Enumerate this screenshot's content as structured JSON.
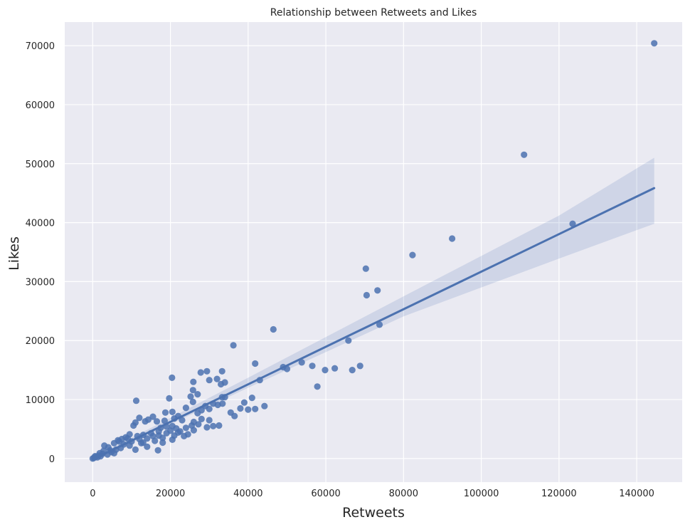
{
  "chart_data": {
    "type": "scatter",
    "title": "Relationship between Retweets and Likes",
    "xlabel": "Retweets",
    "ylabel": "Likes",
    "xlim": [
      -7200,
      151700
    ],
    "ylim": [
      -4000,
      74000
    ],
    "xticks": [
      0,
      20000,
      40000,
      60000,
      80000,
      100000,
      120000,
      140000
    ],
    "yticks": [
      0,
      10000,
      20000,
      30000,
      40000,
      50000,
      60000,
      70000
    ],
    "grid": true,
    "points": [
      [
        144500,
        70400
      ],
      [
        111000,
        51500
      ],
      [
        123500,
        39800
      ],
      [
        92500,
        37300
      ],
      [
        82300,
        34500
      ],
      [
        70300,
        32200
      ],
      [
        73300,
        28500
      ],
      [
        70500,
        27700
      ],
      [
        73800,
        22700
      ],
      [
        46500,
        21900
      ],
      [
        65800,
        20000
      ],
      [
        36200,
        19200
      ],
      [
        41800,
        16100
      ],
      [
        53800,
        16300
      ],
      [
        49000,
        15500
      ],
      [
        50000,
        15200
      ],
      [
        56500,
        15700
      ],
      [
        59800,
        15000
      ],
      [
        62300,
        15300
      ],
      [
        66800,
        15000
      ],
      [
        68800,
        15700
      ],
      [
        57800,
        12200
      ],
      [
        43000,
        13300
      ],
      [
        44200,
        8900
      ],
      [
        39000,
        9500
      ],
      [
        40000,
        8300
      ],
      [
        41000,
        10300
      ],
      [
        41800,
        8400
      ],
      [
        38000,
        8500
      ],
      [
        35500,
        7800
      ],
      [
        36500,
        7200
      ],
      [
        27800,
        14600
      ],
      [
        29400,
        14800
      ],
      [
        32000,
        13500
      ],
      [
        33300,
        14800
      ],
      [
        30000,
        13300
      ],
      [
        33000,
        12600
      ],
      [
        34000,
        12900
      ],
      [
        20400,
        13700
      ],
      [
        25900,
        13000
      ],
      [
        25800,
        11600
      ],
      [
        27000,
        10900
      ],
      [
        25200,
        10500
      ],
      [
        25800,
        9600
      ],
      [
        19700,
        10200
      ],
      [
        11200,
        9800
      ],
      [
        33300,
        10400
      ],
      [
        34000,
        10400
      ],
      [
        31000,
        9300
      ],
      [
        32200,
        9100
      ],
      [
        33400,
        9300
      ],
      [
        29000,
        8900
      ],
      [
        30000,
        8400
      ],
      [
        28000,
        8200
      ],
      [
        27000,
        7700
      ],
      [
        24000,
        8600
      ],
      [
        22000,
        7200
      ],
      [
        20500,
        7900
      ],
      [
        18700,
        7800
      ],
      [
        21000,
        6800
      ],
      [
        23000,
        6500
      ],
      [
        26000,
        6200
      ],
      [
        28000,
        6700
      ],
      [
        29400,
        5300
      ],
      [
        31000,
        5500
      ],
      [
        32500,
        5600
      ],
      [
        30000,
        6500
      ],
      [
        24500,
        4100
      ],
      [
        22000,
        4400
      ],
      [
        17500,
        5200
      ],
      [
        15500,
        7100
      ],
      [
        14300,
        6600
      ],
      [
        12000,
        6900
      ],
      [
        10500,
        5600
      ],
      [
        11000,
        6100
      ],
      [
        13500,
        6300
      ],
      [
        16500,
        6300
      ],
      [
        18500,
        6400
      ],
      [
        19000,
        5400
      ],
      [
        20500,
        5500
      ],
      [
        21500,
        5100
      ],
      [
        17000,
        4600
      ],
      [
        15000,
        4300
      ],
      [
        13000,
        4000
      ],
      [
        11500,
        3800
      ],
      [
        9500,
        4100
      ],
      [
        8500,
        3600
      ],
      [
        7500,
        3300
      ],
      [
        6500,
        3100
      ],
      [
        5500,
        2600
      ],
      [
        16800,
        1400
      ],
      [
        11000,
        1500
      ],
      [
        14000,
        2000
      ],
      [
        18000,
        2700
      ],
      [
        20500,
        3200
      ],
      [
        12500,
        2600
      ],
      [
        9500,
        2200
      ],
      [
        7200,
        1800
      ],
      [
        4500,
        1400
      ],
      [
        3000,
        2200
      ],
      [
        5500,
        900
      ],
      [
        2500,
        800
      ],
      [
        1500,
        500
      ],
      [
        800,
        300
      ],
      [
        300,
        100
      ],
      [
        0,
        0
      ],
      [
        1200,
        200
      ],
      [
        2000,
        400
      ],
      [
        3800,
        700
      ],
      [
        4800,
        1100
      ],
      [
        6000,
        1500
      ],
      [
        8000,
        2400
      ],
      [
        10000,
        2900
      ],
      [
        12000,
        3300
      ],
      [
        14000,
        3400
      ],
      [
        15500,
        3800
      ],
      [
        17000,
        3900
      ],
      [
        19000,
        4300
      ],
      [
        20000,
        4700
      ],
      [
        22500,
        4600
      ],
      [
        24000,
        5200
      ],
      [
        25500,
        5600
      ],
      [
        26000,
        4800
      ],
      [
        27200,
        5800
      ],
      [
        23500,
        3800
      ],
      [
        21000,
        3900
      ],
      [
        18000,
        3500
      ],
      [
        16000,
        3000
      ],
      [
        13000,
        2700
      ],
      [
        9000,
        3400
      ],
      [
        6800,
        2900
      ],
      [
        4000,
        1900
      ],
      [
        2800,
        1300
      ],
      [
        1800,
        900
      ],
      [
        600,
        400
      ]
    ],
    "regression": {
      "x": [
        0,
        144500
      ],
      "y": [
        -150,
        45850
      ]
    },
    "confidence_band": {
      "x": [
        0,
        40000,
        80000,
        120000,
        144500
      ],
      "lower": [
        -400,
        12000,
        24100,
        33900,
        39800
      ],
      "upper": [
        100,
        13700,
        27500,
        41200,
        51000
      ]
    },
    "colors": {
      "background": "#eaeaf2",
      "grid": "#ffffff",
      "points": "#4c72b0",
      "band": "#4c72b0"
    }
  }
}
